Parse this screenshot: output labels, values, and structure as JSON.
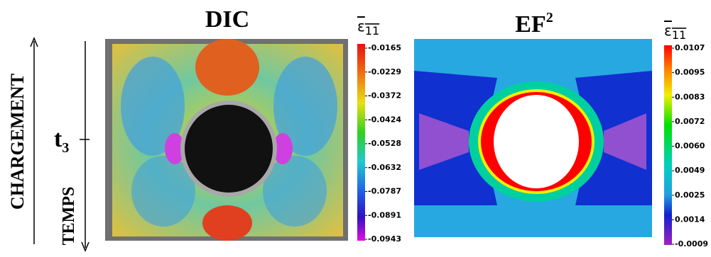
{
  "side_labels": {
    "load": "CHARGEMENT",
    "time": "TEMPS",
    "marker": "t",
    "marker_subscript": "3"
  },
  "panels": [
    {
      "title": "DIC",
      "title_superscript": null,
      "colorbar": {
        "symbol": "ε",
        "subscript": "11",
        "labels": [
          "-0.0165",
          "-0.0229",
          "-0.0372",
          "-0.0424",
          "-0.0528",
          "-0.0632",
          "-0.0787",
          "-0.0891",
          "-0.0943"
        ]
      }
    },
    {
      "title": "EF",
      "title_superscript": "2",
      "colorbar": {
        "symbol": "ε",
        "subscript": "11",
        "labels": [
          "0.0107",
          "0.0095",
          "0.0083",
          "0.0072",
          "0.0060",
          "0.0049",
          "0.0025",
          "0.0014",
          "-0.0009"
        ]
      }
    }
  ]
}
